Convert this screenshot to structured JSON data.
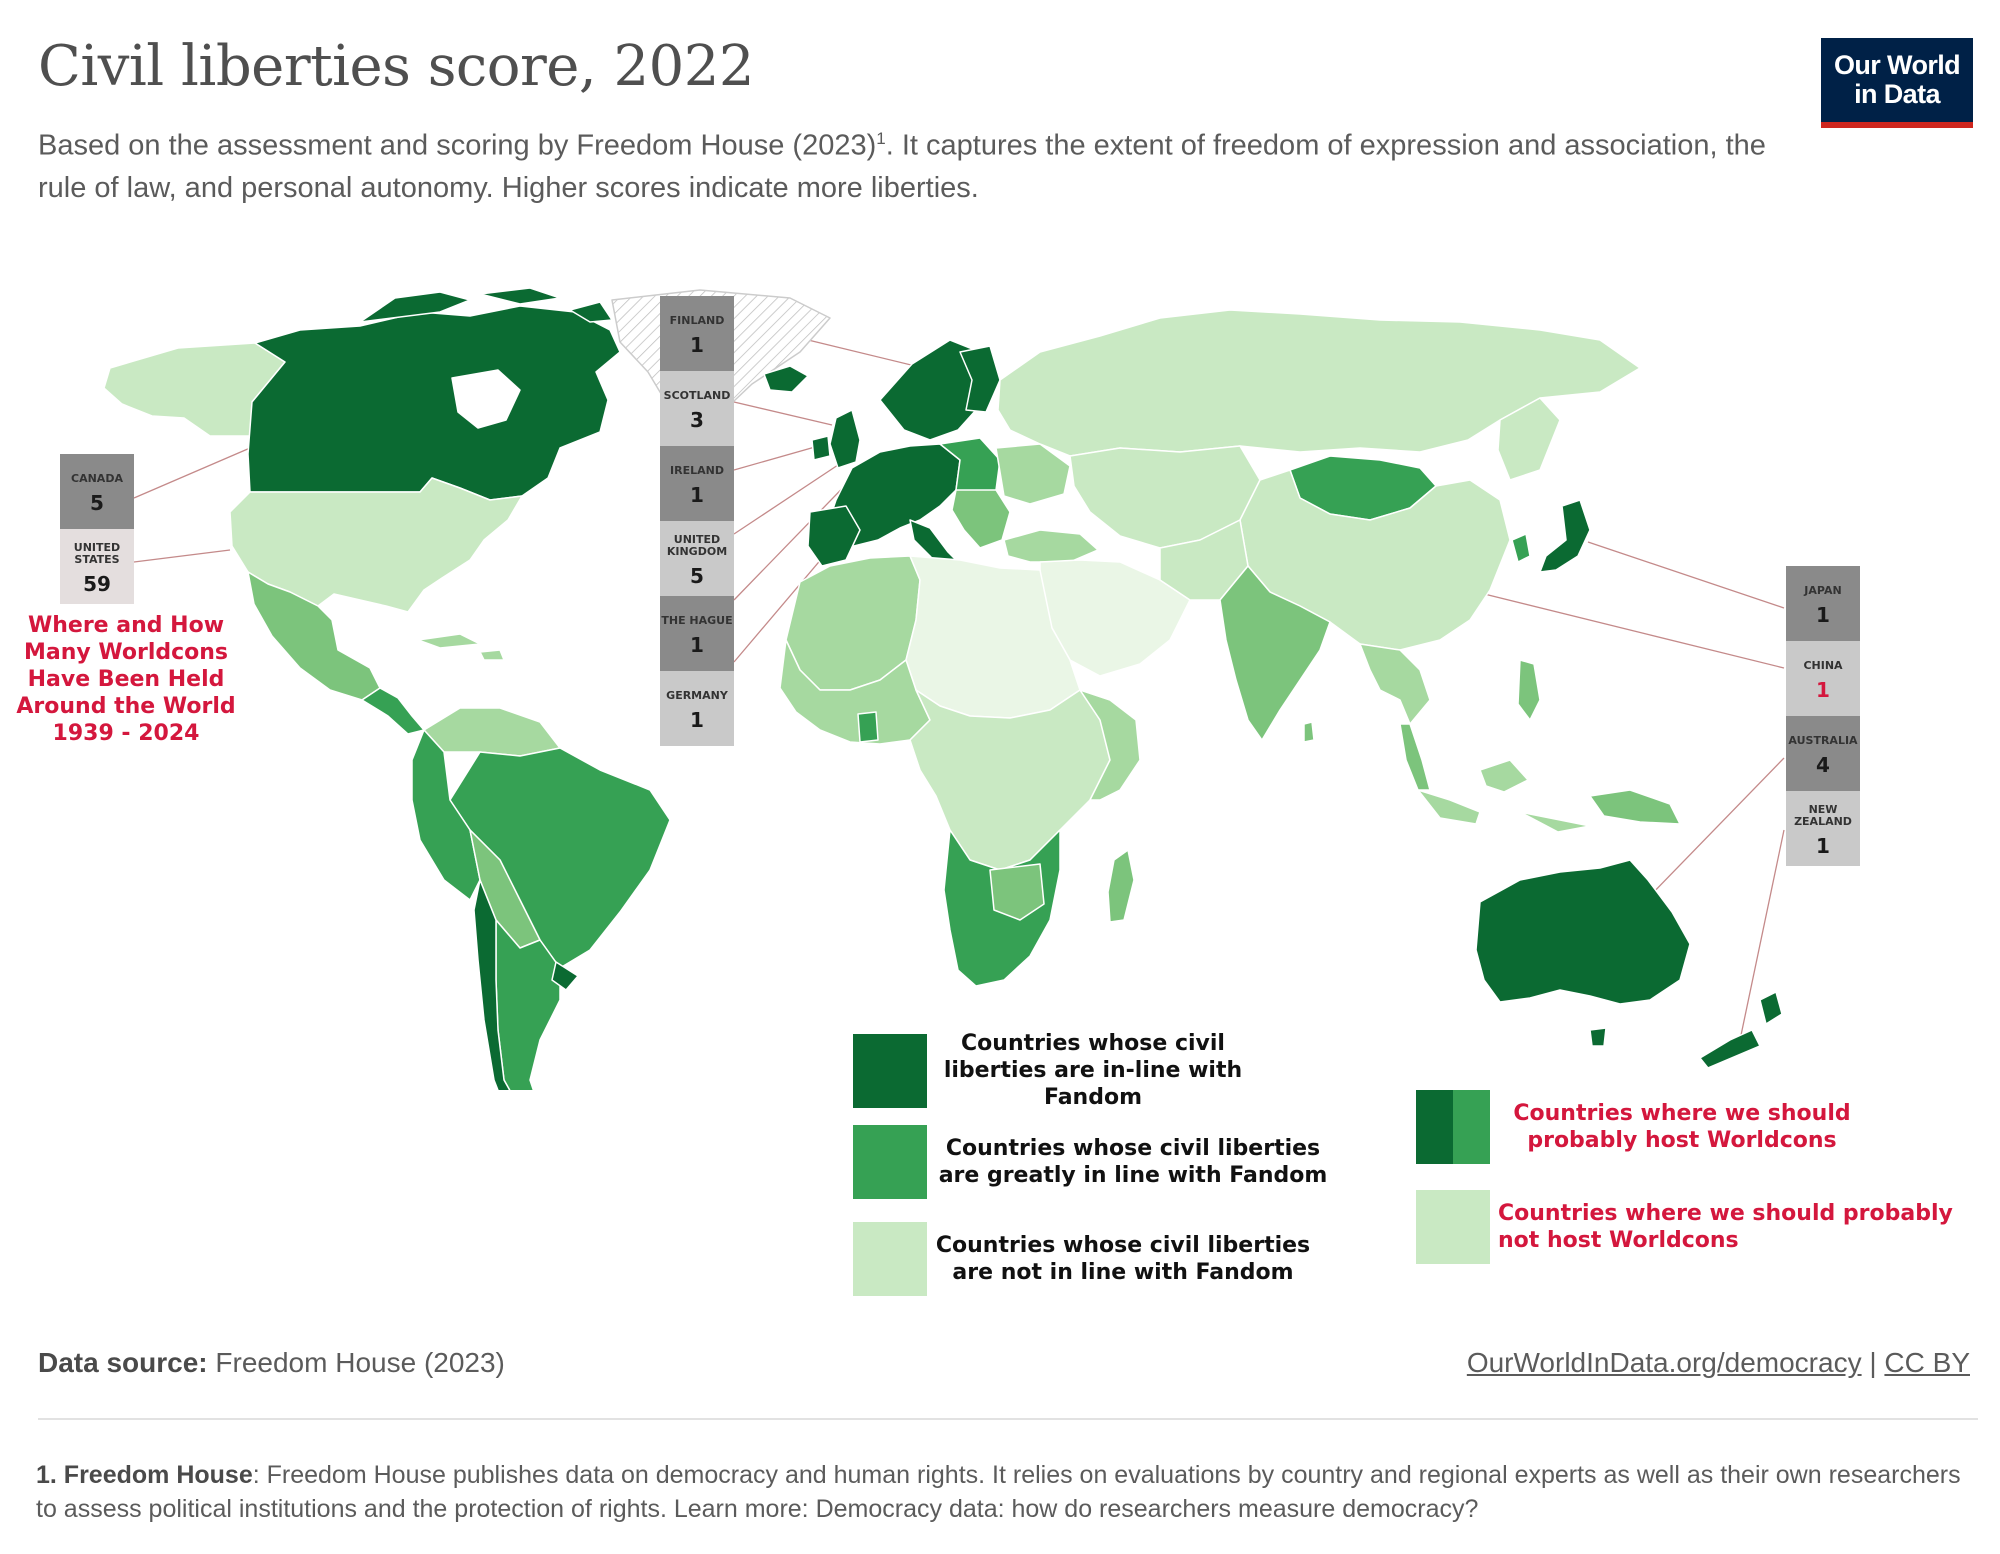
{
  "header": {
    "title": "Civil liberties score, 2022",
    "subtitle_a": "Based on the assessment and scoring by Freedom House (2023)",
    "subtitle_sup": "1",
    "subtitle_b": ". It captures the extent of freedom of expression and association, the rule of law, and personal autonomy. Higher scores indicate more liberties."
  },
  "logo": {
    "line1": "Our World",
    "line2": "in Data"
  },
  "colors": {
    "dark_green": "#0b6a32",
    "mid_green": "#36a154",
    "green_3": "#7cc47c",
    "green_4": "#a6d9a0",
    "light_green": "#c9e9c3",
    "very_light": "#eaf6e6",
    "count_dark": "#8a8a8a",
    "count_light": "#c9c9c9",
    "count_lightest": "#e4dede",
    "accent_red": "#d4173d",
    "ocean": "#ffffff"
  },
  "worldcons": {
    "title": "Where and How Many Worldcons Have Been Held Around the World 1939 - 2024",
    "groups": [
      {
        "id": "americas",
        "entries": [
          {
            "country": "Canada",
            "count": "5",
            "shade": "dark"
          },
          {
            "country": "United States",
            "count": "59",
            "shade": "lightest"
          }
        ]
      },
      {
        "id": "europe",
        "entries": [
          {
            "country": "Finland",
            "count": "1",
            "shade": "dark"
          },
          {
            "country": "Scotland",
            "count": "3",
            "shade": "light"
          },
          {
            "country": "Ireland",
            "count": "1",
            "shade": "dark"
          },
          {
            "country": "United Kingdom",
            "count": "5",
            "shade": "light"
          },
          {
            "country": "The Hague",
            "count": "1",
            "shade": "dark"
          },
          {
            "country": "Germany",
            "count": "1",
            "shade": "light"
          }
        ]
      },
      {
        "id": "asia-pacific",
        "entries": [
          {
            "country": "Japan",
            "count": "1",
            "shade": "dark"
          },
          {
            "country": "China",
            "count": "1",
            "shade": "light",
            "highlight": true
          },
          {
            "country": "Australia",
            "count": "4",
            "shade": "dark"
          },
          {
            "country": "New Zealand",
            "count": "1",
            "shade": "light"
          }
        ]
      }
    ]
  },
  "legend": {
    "items": [
      {
        "label": "Countries whose civil liberties are in-line with Fandom",
        "color": "dark"
      },
      {
        "label": "Countries whose civil liberties are greatly in line with Fandom",
        "color": "mid"
      },
      {
        "label": "Countries whose civil liberties are not in line with Fandom",
        "color": "light"
      }
    ],
    "host_items": [
      {
        "label": "Countries where we should probably host Worldcons",
        "colors": [
          "dark",
          "mid"
        ]
      },
      {
        "label": "Countries where we should probably not host Worldcons",
        "colors": [
          "light"
        ]
      }
    ]
  },
  "footer": {
    "source_label": "Data source:",
    "source_value": "Freedom House (2023)",
    "url": "OurWorldInData.org/democracy",
    "separator": "|",
    "license": "CC BY",
    "footnote_label": "1. Freedom House",
    "footnote_text": ": Freedom House publishes data on democracy and human rights. It relies on evaluations by country and regional experts as well as their own researchers to assess political institutions and the protection of rights. Learn more: Democracy data: how do researchers measure democracy?"
  }
}
